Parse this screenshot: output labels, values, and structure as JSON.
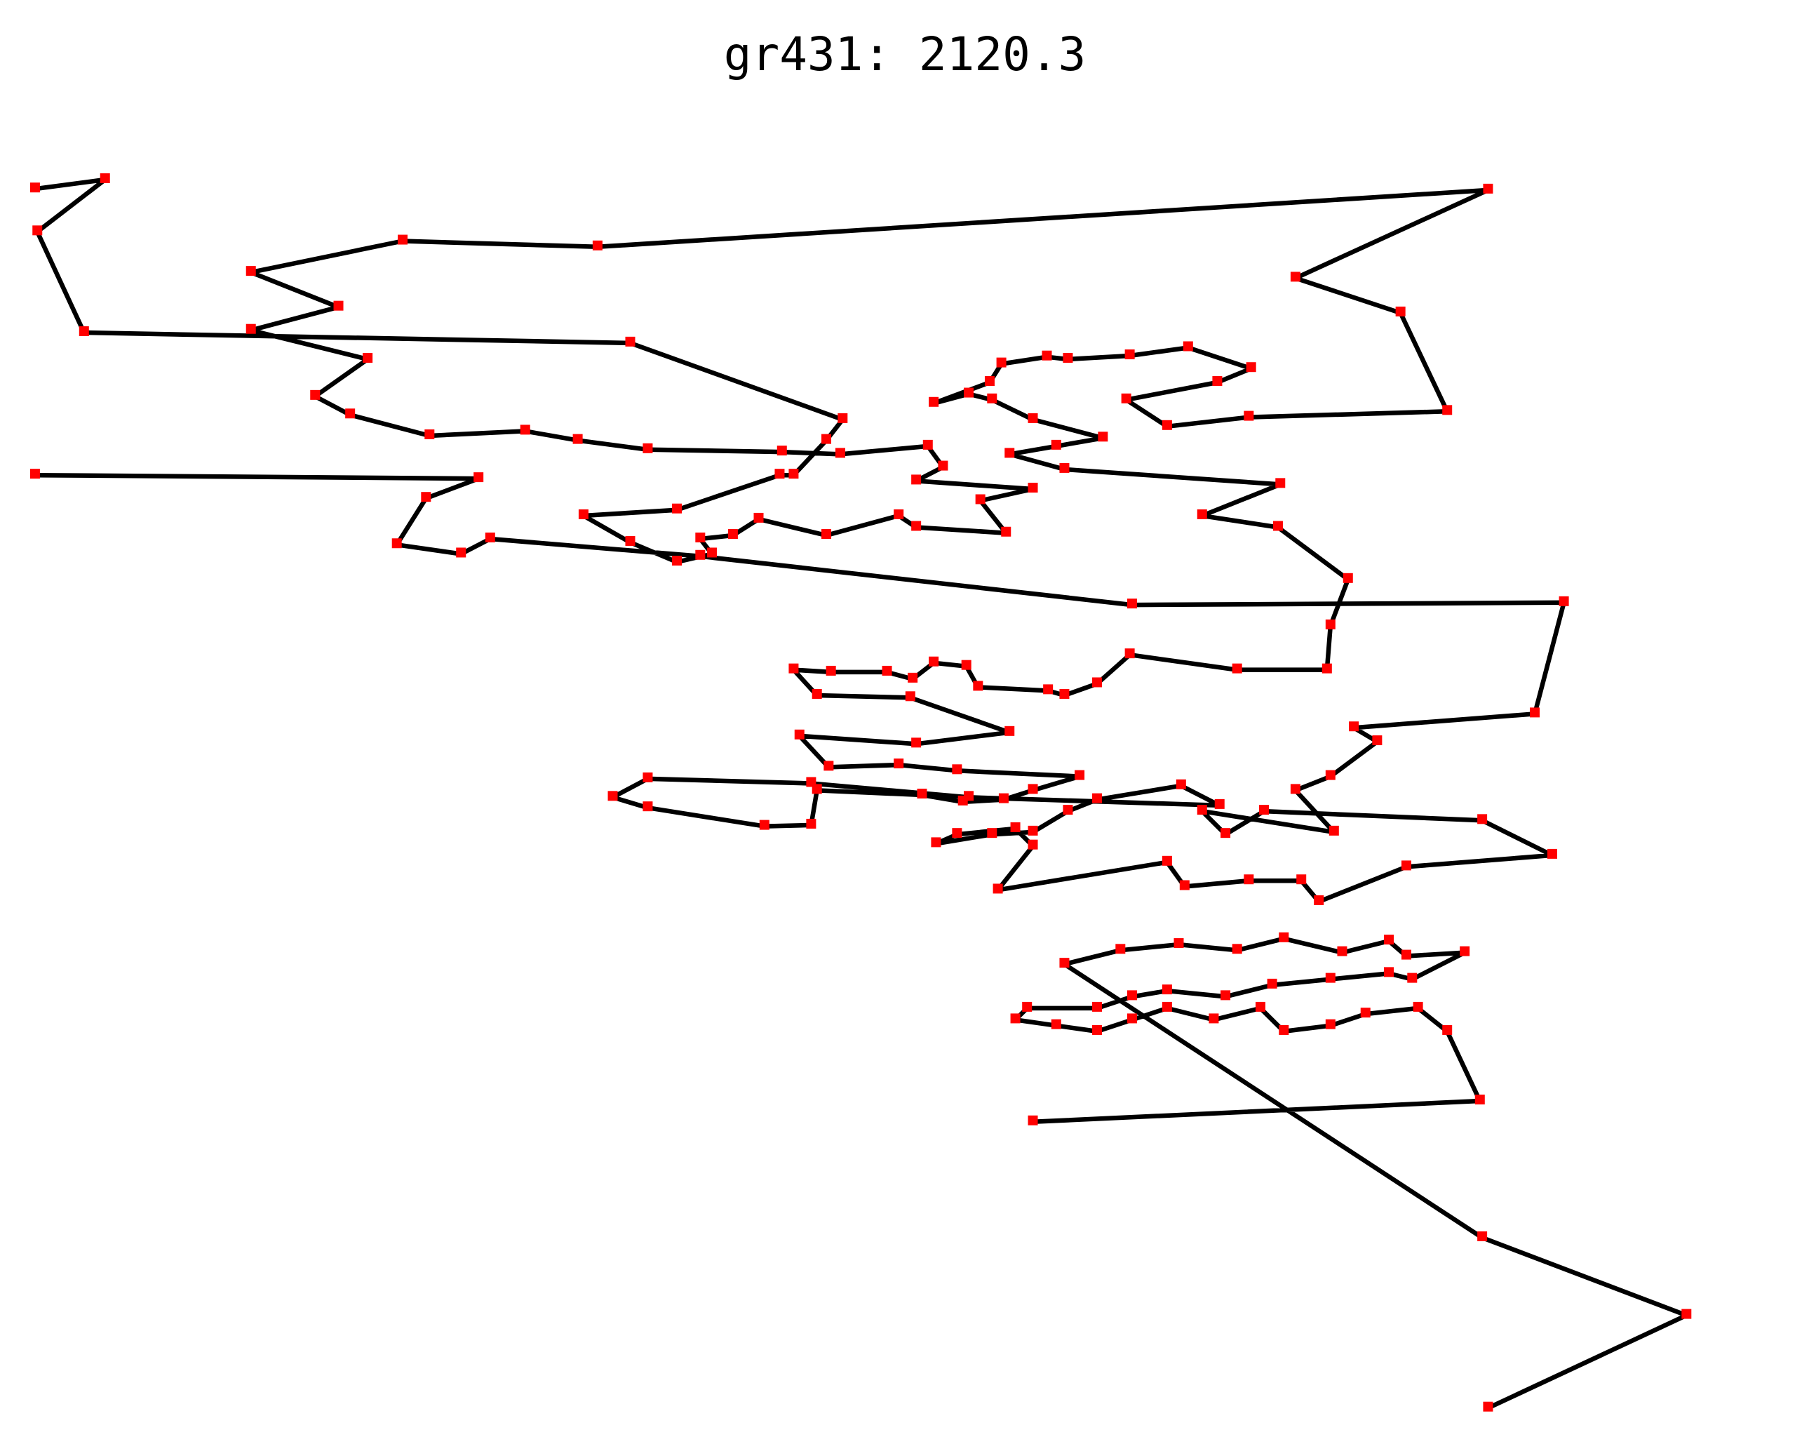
{
  "chart_data": {
    "type": "line",
    "title": "gr431: 2120.3",
    "x": [
      885,
      1268,
      1240,
      1215,
      1170,
      1140,
      1100,
      1080,
      1040,
      1000,
      970,
      940,
      905,
      870,
      880,
      940,
      970,
      1000,
      1050,
      1090,
      1140,
      1190,
      1210,
      1255,
      1205,
      1190,
      1150,
      1100,
      1060,
      1010,
      960,
      912,
      1270,
      1445,
      1275,
      null,
      30,
      90,
      32,
      72,
      540,
      722,
      708,
      680,
      668,
      580,
      500,
      540,
      580,
      610,
      600,
      628,
      650,
      708,
      770,
      785,
      862,
      840,
      885,
      785,
      808,
      795,
      720,
      670,
      555,
      495,
      450,
      368,
      300,
      270,
      315,
      215,
      290,
      215,
      345,
      512,
      1275,
      1110,
      1200,
      1240,
      1070,
      1000,
      965,
      1043,
      1072,
      1018,
      968,
      915,
      897,
      858,
      848,
      800,
      830,
      850,
      885,
      945,
      905,
      865,
      912,
      1097,
      1030,
      1095,
      1155,
      1140,
      1137,
      1060,
      968,
      940,
      912,
      898,
      838,
      828,
      800,
      782,
      760,
      712,
      680,
      700,
      780,
      865,
      785,
      685,
      710,
      770,
      820,
      925,
      885,
      860,
      825,
      790,
      700,
      695,
      655,
      555,
      525,
      555,
      695,
      830,
      1045,
      1012,
      940,
      915,
      885,
      850,
      802,
      820,
      870,
      885,
      855,
      1000,
      1015,
      1070,
      1115,
      1130,
      1205,
      1330,
      1270,
      1083,
      1050,
      1030,
      1143,
      1110,
      1140,
      1180,
      1160,
      1315,
      1340,
      970,
      600,
      420,
      395,
      340,
      365,
      410,
      30
    ],
    "series": [
      {
        "name": "tour",
        "color": "#000000",
        "marker_color": "#ff0000",
        "values": [
          968,
          950,
          890,
          870,
          875,
          885,
          890,
          870,
          880,
          870,
          880,
          890,
          885,
          880,
          870,
          870,
          860,
          855,
          860,
          850,
          845,
          840,
          845,
          822,
          825,
          812,
          822,
          810,
          820,
          815,
          820,
          832,
          1068,
          1135,
          1215,
          null,
          163,
          155,
          200,
          287,
          296,
          362,
          380,
          410,
          410,
          440,
          445,
          468,
          485,
          478,
          465,
          462,
          448,
          462,
          445,
          455,
          460,
          432,
          422,
          415,
          403,
          385,
          392,
          390,
          388,
          380,
          372,
          376,
          358,
          342,
          310,
          285,
          265,
          235,
          208,
          213,
          164,
          240,
          270,
          355,
          360,
          368,
          345,
          330,
          318,
          300,
          307,
          310,
          308,
          314,
          330,
          348,
          340,
          345,
          362,
          378,
          385,
          392,
          405,
          418,
          445,
          455,
          500,
          540,
          578,
          578,
          565,
          590,
          600,
          596,
          593,
          575,
          572,
          586,
          580,
          580,
          578,
          600,
          602,
          632,
          642,
          635,
          662,
          660,
          665,
          670,
          682,
          690,
          692,
          686,
          682,
          712,
          713,
          697,
          688,
          672,
          676,
          688,
          695,
          678,
          690,
          700,
          718,
          720,
          728,
          720,
          715,
          730,
          768,
          744,
          765,
          760,
          760,
          778,
          748,
          738,
          708,
          700,
          720,
          700,
          718,
          682,
          670,
          640,
          628,
          616,
          520,
          522,
          480,
          465,
          478,
          470,
          430,
          413,
          410
        ]
      }
    ],
    "xlim": [
      0,
      1550
    ],
    "ylim": [
      1240,
      0
    ]
  }
}
